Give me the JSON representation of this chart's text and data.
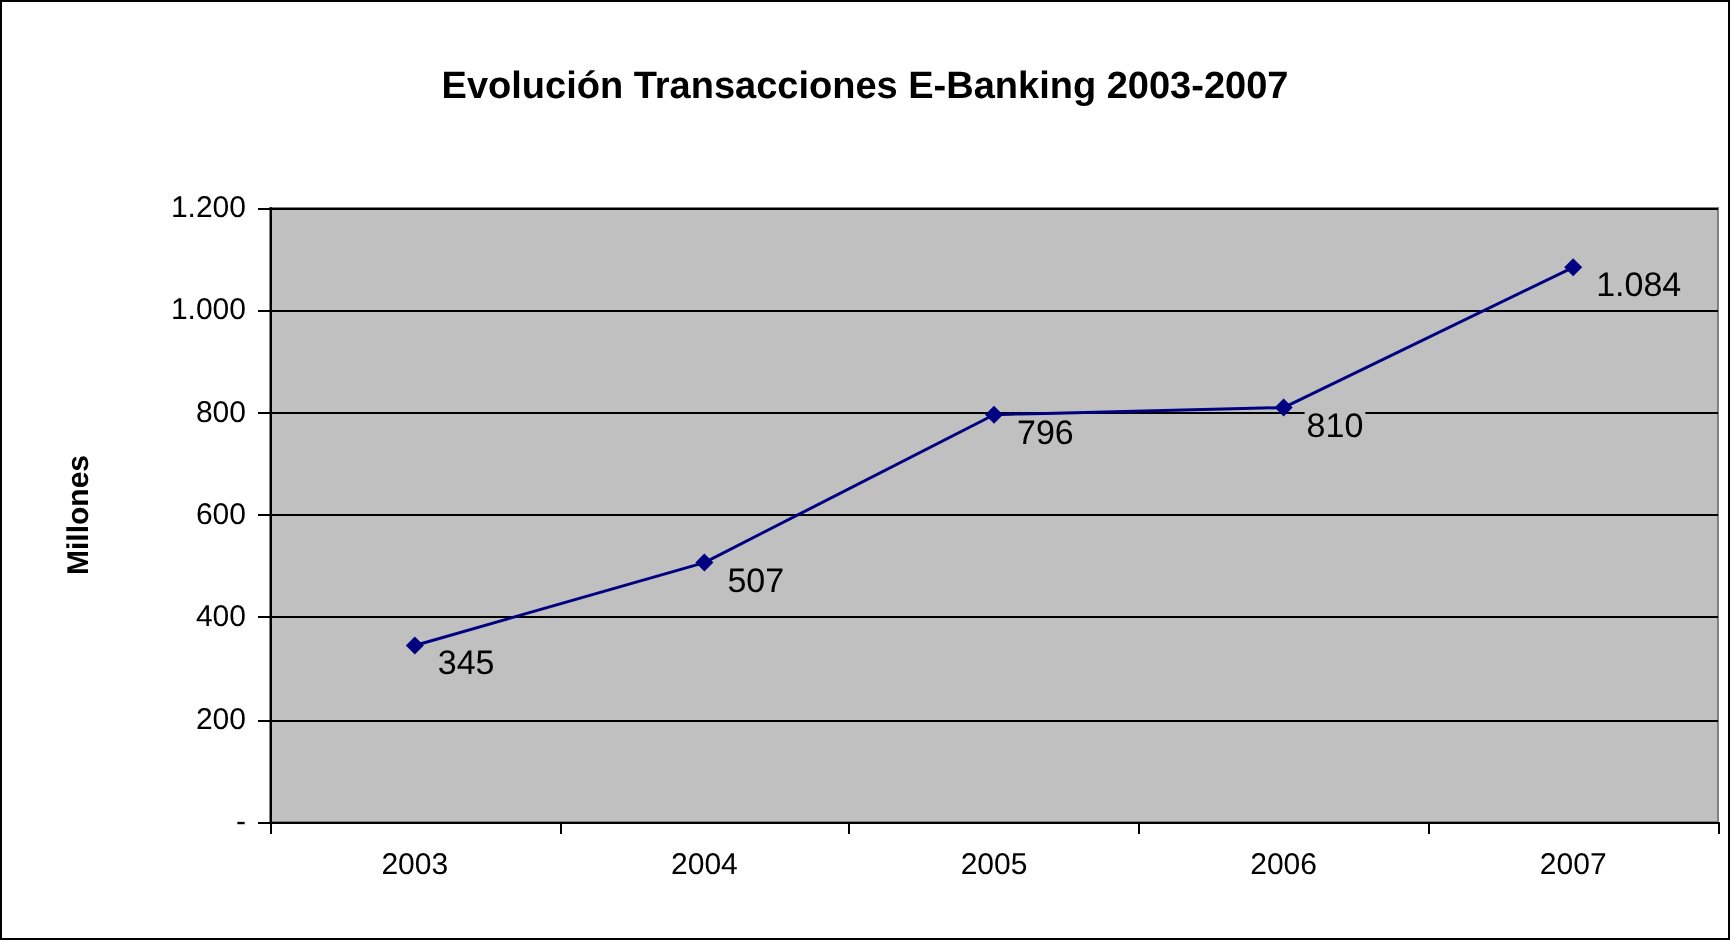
{
  "chart_data": {
    "type": "line",
    "title": "Evolución Transacciones E-Banking 2003-2007",
    "ylabel": "Millones",
    "categories": [
      "2003",
      "2004",
      "2005",
      "2006",
      "2007"
    ],
    "series": [
      {
        "color": "#000080",
        "values": [
          345,
          507,
          796,
          810,
          1084
        ],
        "value_labels": [
          "345",
          "507",
          "796",
          "810",
          "1.084"
        ]
      }
    ],
    "ylim": [
      0,
      1200
    ],
    "yticks": [
      {
        "value": 0,
        "label": "-"
      },
      200,
      400,
      600,
      800,
      {
        "value": 1000,
        "label": "1.000"
      },
      {
        "value": 1200,
        "label": "1.200"
      }
    ],
    "grid": "y",
    "marker": "diamond",
    "line_style": "solid"
  }
}
